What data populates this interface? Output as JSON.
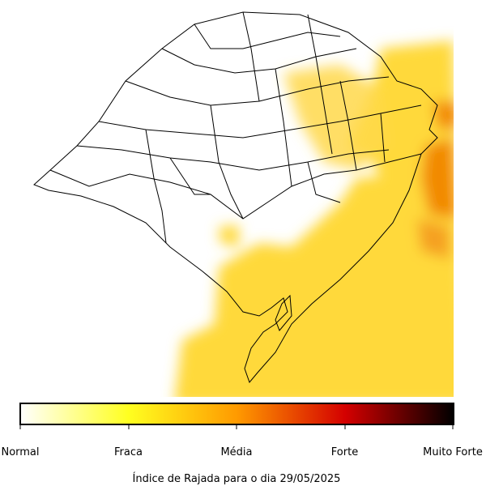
{
  "colorbar": {
    "labels": [
      "Normal",
      "Fraca",
      "Média",
      "Forte",
      "Muito Forte"
    ]
  },
  "caption": "Índice de Rajada para o dia 29/05/2025"
}
